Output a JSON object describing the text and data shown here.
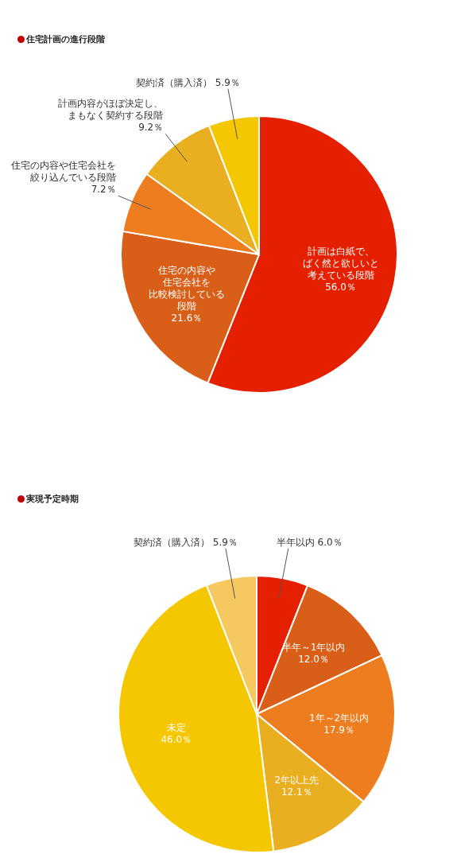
{
  "chart_data": [
    {
      "type": "pie",
      "title": "住宅計画の進行段階",
      "legend": false,
      "categories": [
        "計画は白紙で、ばく然と欲しいと考えている段階",
        "住宅の内容や住宅会社を比較検討している段階",
        "住宅の内容や住宅会社を絞り込んでいる段階",
        "計画内容がほぼ決定し、まもなく契約する段階",
        "契約済（購入済）"
      ],
      "values": [
        56.0,
        21.6,
        7.2,
        9.2,
        5.9
      ],
      "value_labels": [
        "56.0％",
        "21.6％",
        "7.2％",
        "9.2％",
        "5.9％"
      ],
      "colors": [
        "#e52000",
        "#d95f18",
        "#ee7d20",
        "#e9af20",
        "#f5c700"
      ]
    },
    {
      "type": "pie",
      "title": "実現予定時期",
      "legend": false,
      "categories": [
        "半年以内",
        "半年～1年以内",
        "1年～2年以内",
        "2年以上先",
        "未定",
        "契約済（購入済）"
      ],
      "values": [
        6.0,
        12.0,
        17.9,
        12.1,
        46.0,
        5.9
      ],
      "value_labels": [
        "6.0％",
        "12.0％",
        "17.9％",
        "12.1％",
        "46.0％",
        "5.9％"
      ],
      "colors": [
        "#e52000",
        "#d95f18",
        "#ee7d20",
        "#e9af20",
        "#f5c700",
        "#f5c860"
      ]
    }
  ]
}
